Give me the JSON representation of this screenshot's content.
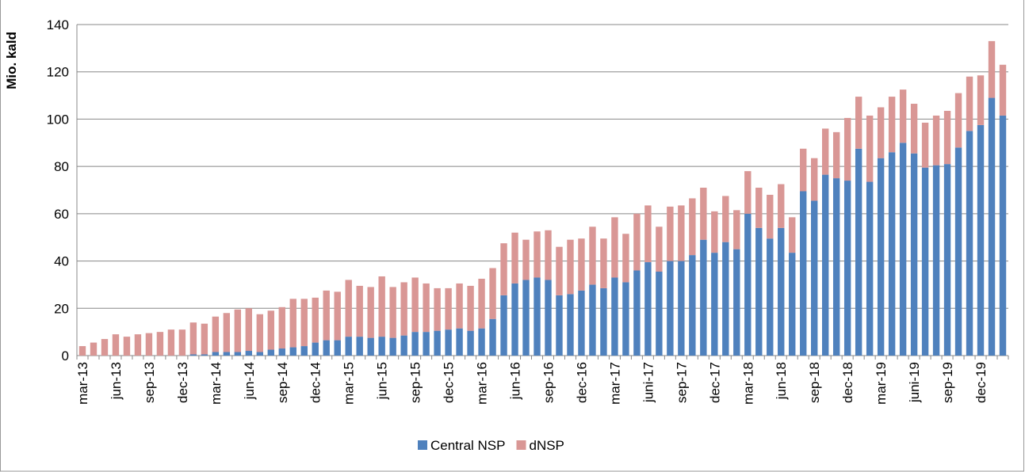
{
  "chart_data": {
    "type": "stacked-bar",
    "y_label": "Mio. kald",
    "categories": [
      "mar-13",
      null,
      null,
      "jun-13",
      null,
      null,
      "sep-13",
      null,
      null,
      "dec-13",
      null,
      null,
      "mar-14",
      null,
      null,
      "jun-14",
      null,
      null,
      "sep-14",
      null,
      null,
      "dec-14",
      null,
      null,
      "mar-15",
      null,
      null,
      "jun-15",
      null,
      null,
      "sep-15",
      null,
      null,
      "dec-15",
      null,
      null,
      "mar-16",
      null,
      null,
      "jun-16",
      null,
      null,
      "sep-16",
      null,
      null,
      "dec-16",
      null,
      null,
      "mar-17",
      null,
      null,
      "juni-17",
      null,
      null,
      "sep-17",
      null,
      null,
      "dec-17",
      null,
      null,
      "mar-18",
      null,
      null,
      "jun-18",
      null,
      null,
      "sep-18",
      null,
      null,
      "dec-18",
      null,
      null,
      "mar-19",
      null,
      null,
      "juni-19",
      null,
      null,
      "sep-19",
      null,
      null,
      "dec-19",
      null,
      null
    ],
    "series": [
      {
        "name": "Central NSP",
        "color": "#4f81bd",
        "values": [
          0,
          0,
          0,
          0,
          0,
          0,
          0,
          0,
          0,
          0,
          0.5,
          0.5,
          1.5,
          1.5,
          1.5,
          2,
          1.5,
          2.5,
          3,
          3.5,
          4,
          5.5,
          6.5,
          6.5,
          8,
          8,
          7.5,
          8,
          7.5,
          8.5,
          10,
          10,
          10.5,
          11,
          11.5,
          10.5,
          11.5,
          15.5,
          25.5,
          30.5,
          32,
          33,
          32,
          25.5,
          26,
          27.5,
          30,
          28.5,
          33,
          31,
          36,
          39.5,
          35.5,
          40,
          40,
          42.5,
          49,
          43.5,
          48,
          45,
          60,
          54,
          49.5,
          54,
          43.5,
          69.5,
          65.5,
          76.5,
          75,
          74,
          87.5,
          73.5,
          83.5,
          86,
          90,
          85.5,
          79.5,
          80.5,
          81,
          88,
          95,
          97.5,
          109,
          101.5
        ]
      },
      {
        "name": "dNSP",
        "color": "#d99795",
        "values": [
          4,
          5.5,
          7,
          9,
          8,
          9,
          9.5,
          10,
          11,
          11,
          13.5,
          13,
          15,
          16.5,
          18,
          18,
          16,
          16.5,
          17.5,
          20.5,
          20,
          19,
          21,
          20.5,
          24,
          21.5,
          21.5,
          25.5,
          21.5,
          22.5,
          23,
          20.5,
          18,
          17.5,
          19,
          19,
          21,
          21.5,
          22,
          21.5,
          17,
          19.5,
          21,
          20.5,
          23,
          22,
          24.5,
          21,
          25.5,
          20.5,
          24,
          24,
          19,
          23,
          23.5,
          24,
          22,
          17.5,
          19.5,
          16.5,
          18,
          17,
          18.5,
          18.5,
          15,
          18,
          18,
          19.5,
          19.5,
          26.5,
          22,
          28,
          21.5,
          23.5,
          22.5,
          21,
          19,
          21,
          22.5,
          23,
          23,
          21,
          24,
          21.5
        ]
      }
    ],
    "ylim": [
      0,
      140
    ],
    "yticks": [
      0,
      20,
      40,
      60,
      80,
      100,
      120,
      140
    ],
    "grid": true
  }
}
